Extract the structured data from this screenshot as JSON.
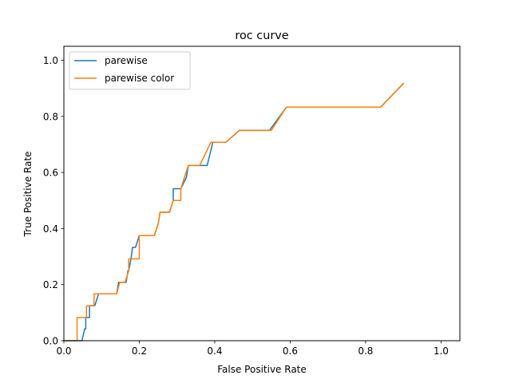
{
  "chart_data": {
    "type": "line",
    "title": "roc curve",
    "xlabel": "False Positive Rate",
    "ylabel": "True Positive Rate",
    "xlim": [
      0.0,
      1.05
    ],
    "ylim": [
      0.0,
      1.05
    ],
    "xticks": [
      0.0,
      0.2,
      0.4,
      0.6,
      0.8,
      1.0
    ],
    "yticks": [
      0.0,
      0.2,
      0.4,
      0.6,
      0.8,
      1.0
    ],
    "tick_labels_x": [
      "0.0",
      "0.2",
      "0.4",
      "0.6",
      "0.8",
      "1.0"
    ],
    "tick_labels_y": [
      "0.0",
      "0.2",
      "0.4",
      "0.6",
      "0.8",
      "1.0"
    ],
    "grid": false,
    "legend_position": "top-left",
    "series": [
      {
        "name": "parewise",
        "color": "#1f77b4",
        "x": [
          0.0,
          0.048,
          0.048,
          0.052,
          0.052,
          0.055,
          0.055,
          0.062,
          0.062,
          0.068,
          0.068,
          0.088,
          0.088,
          0.1,
          0.1,
          0.11,
          0.11,
          0.145,
          0.145,
          0.17,
          0.17,
          0.18,
          0.18,
          0.195,
          0.195,
          0.205,
          0.205,
          0.24,
          0.24,
          0.255,
          0.255,
          0.285,
          0.285,
          0.31,
          0.31,
          0.32,
          0.32,
          0.335,
          0.335,
          0.38,
          0.38,
          0.395,
          0.395,
          0.43,
          0.43,
          0.465,
          0.465,
          0.545,
          0.545,
          0.59,
          0.59,
          0.84,
          0.84,
          0.9
        ],
        "y": [
          0.0,
          0.0,
          0.042,
          0.042,
          0.083,
          0.083,
          0.125,
          0.125,
          0.167,
          0.167,
          0.208,
          0.208,
          0.25,
          0.25,
          0.292,
          0.292,
          0.333,
          0.333,
          0.375,
          0.375,
          0.417,
          0.417,
          0.458,
          0.458,
          0.5,
          0.5,
          0.542,
          0.542,
          0.583,
          0.583,
          0.625,
          0.625,
          0.625,
          0.625,
          0.708,
          0.708,
          0.708,
          0.708,
          0.75,
          0.75,
          0.75,
          0.75,
          0.833,
          0.833,
          0.833,
          0.833,
          0.917,
          0.917,
          0.917,
          0.917,
          0.917,
          0.917,
          0.917,
          0.917
        ],
        "points": [
          [
            0.0,
            0.0
          ],
          [
            0.048,
            0.0
          ],
          [
            0.048,
            0.0
          ],
          [
            0.055,
            0.042
          ],
          [
            0.058,
            0.042
          ],
          [
            0.058,
            0.083
          ],
          [
            0.068,
            0.083
          ],
          [
            0.068,
            0.125
          ],
          [
            0.082,
            0.125
          ],
          [
            0.092,
            0.167
          ],
          [
            0.14,
            0.167
          ],
          [
            0.145,
            0.208
          ],
          [
            0.165,
            0.208
          ],
          [
            0.17,
            0.25
          ],
          [
            0.172,
            0.25
          ],
          [
            0.178,
            0.292
          ],
          [
            0.182,
            0.333
          ],
          [
            0.19,
            0.333
          ],
          [
            0.2,
            0.375
          ],
          [
            0.24,
            0.375
          ],
          [
            0.25,
            0.417
          ],
          [
            0.255,
            0.458
          ],
          [
            0.28,
            0.458
          ],
          [
            0.29,
            0.5
          ],
          [
            0.29,
            0.542
          ],
          [
            0.31,
            0.542
          ],
          [
            0.325,
            0.583
          ],
          [
            0.33,
            0.625
          ],
          [
            0.38,
            0.625
          ],
          [
            0.395,
            0.708
          ],
          [
            0.43,
            0.708
          ],
          [
            0.465,
            0.75
          ],
          [
            0.545,
            0.75
          ],
          [
            0.59,
            0.833
          ],
          [
            0.84,
            0.833
          ],
          [
            0.9,
            0.917
          ]
        ]
      },
      {
        "name": "parewise color",
        "color": "#ff7f0e",
        "points": [
          [
            0.0,
            0.0
          ],
          [
            0.035,
            0.0
          ],
          [
            0.035,
            0.083
          ],
          [
            0.06,
            0.083
          ],
          [
            0.06,
            0.125
          ],
          [
            0.08,
            0.125
          ],
          [
            0.08,
            0.167
          ],
          [
            0.14,
            0.167
          ],
          [
            0.148,
            0.208
          ],
          [
            0.162,
            0.208
          ],
          [
            0.172,
            0.25
          ],
          [
            0.172,
            0.292
          ],
          [
            0.2,
            0.292
          ],
          [
            0.2,
            0.375
          ],
          [
            0.24,
            0.375
          ],
          [
            0.25,
            0.417
          ],
          [
            0.255,
            0.458
          ],
          [
            0.28,
            0.458
          ],
          [
            0.29,
            0.5
          ],
          [
            0.31,
            0.5
          ],
          [
            0.31,
            0.542
          ],
          [
            0.33,
            0.625
          ],
          [
            0.36,
            0.625
          ],
          [
            0.39,
            0.708
          ],
          [
            0.43,
            0.708
          ],
          [
            0.465,
            0.75
          ],
          [
            0.55,
            0.75
          ],
          [
            0.59,
            0.833
          ],
          [
            0.84,
            0.833
          ],
          [
            0.9,
            0.917
          ]
        ]
      }
    ]
  }
}
